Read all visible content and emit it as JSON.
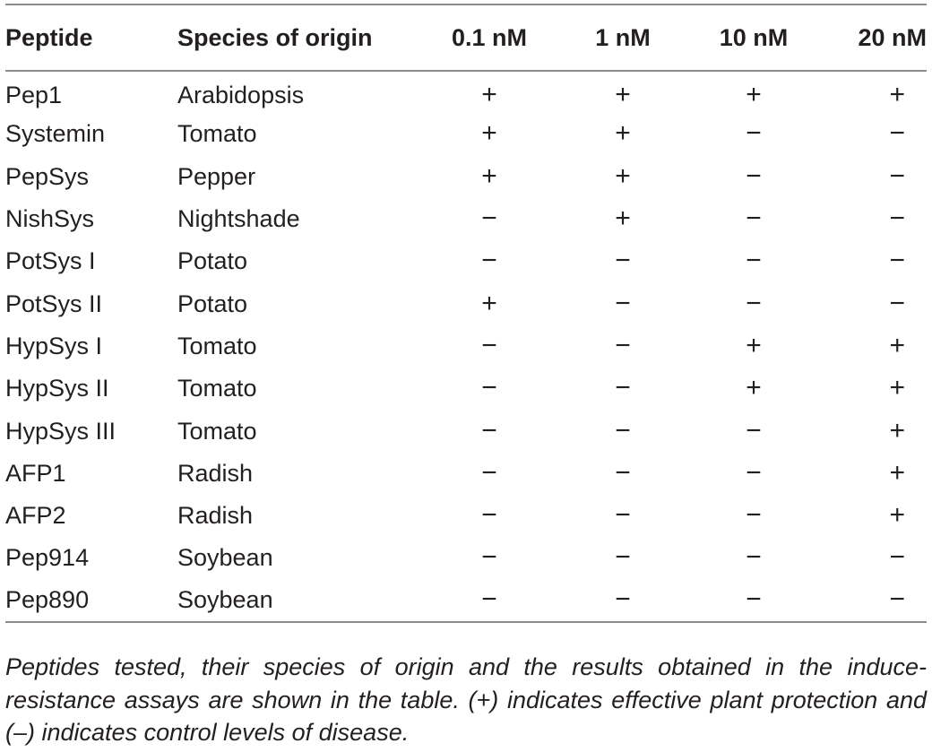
{
  "table": {
    "headers": [
      "Peptide",
      "Species of origin",
      "0.1 nM",
      "1 nM",
      "10 nM",
      "20 nM"
    ],
    "rows": [
      [
        "Pep1",
        "Arabidopsis",
        "+",
        "+",
        "+",
        "+"
      ],
      [
        "Systemin",
        "Tomato",
        "+",
        "+",
        "−",
        "−"
      ],
      [
        "PepSys",
        "Pepper",
        "+",
        "+",
        "−",
        "−"
      ],
      [
        "NishSys",
        "Nightshade",
        "−",
        "+",
        "−",
        "−"
      ],
      [
        "PotSys I",
        "Potato",
        "−",
        "−",
        "−",
        "−"
      ],
      [
        "PotSys II",
        "Potato",
        "+",
        "−",
        "−",
        "−"
      ],
      [
        "HypSys I",
        "Tomato",
        "−",
        "−",
        "+",
        "+"
      ],
      [
        "HypSys II",
        "Tomato",
        "−",
        "−",
        "+",
        "+"
      ],
      [
        "HypSys III",
        "Tomato",
        "−",
        "−",
        "−",
        "+"
      ],
      [
        "AFP1",
        "Radish",
        "−",
        "−",
        "−",
        "+"
      ],
      [
        "AFP2",
        "Radish",
        "−",
        "−",
        "−",
        "+"
      ],
      [
        "Pep914",
        "Soybean",
        "−",
        "−",
        "−",
        "−"
      ],
      [
        "Pep890",
        "Soybean",
        "−",
        "−",
        "−",
        "−"
      ]
    ]
  },
  "footnote": "Peptides tested, their species of origin and the results obtained in the induce-resistance assays are shown in the table. (+) indicates effective plant protection and (–) indicates control levels of disease."
}
